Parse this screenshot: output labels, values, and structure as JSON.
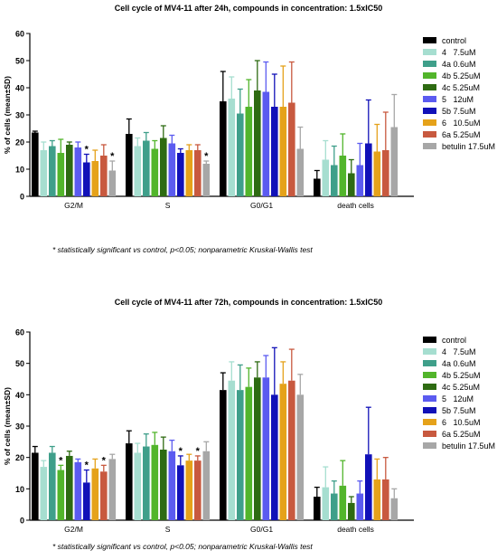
{
  "chart_data": [
    {
      "type": "bar",
      "title": "Cell cycle of  MV4-11 after 24h, compounds in concentration: 1.5xIC50",
      "ylabel": "% of cells (mean±SD)",
      "xlabel": "",
      "ylim": [
        0,
        60
      ],
      "yticks": [
        0,
        10,
        20,
        30,
        40,
        50,
        60
      ],
      "categories": [
        "G2/M",
        "S",
        "G0/G1",
        "death cells"
      ],
      "legend_position": "right",
      "series": [
        {
          "name": "control",
          "color": "#000000",
          "values": [
            23.5,
            23,
            35,
            6.5
          ],
          "errors": [
            0.5,
            5.5,
            11,
            3
          ],
          "significant": [
            false,
            false,
            false,
            false
          ]
        },
        {
          "name": "4   7.5uM",
          "color": "#a6ded0",
          "values": [
            17,
            18.5,
            36,
            13.5
          ],
          "errors": [
            3,
            3,
            8,
            7
          ],
          "significant": [
            false,
            false,
            false,
            false
          ]
        },
        {
          "name": "4a 0.6uM",
          "color": "#3f9f8a",
          "values": [
            18.5,
            20.5,
            30.5,
            11.5
          ],
          "errors": [
            2,
            3,
            9,
            7
          ],
          "significant": [
            false,
            false,
            false,
            false
          ]
        },
        {
          "name": "4b 5.25uM",
          "color": "#52b52b",
          "values": [
            16,
            17.5,
            33,
            15
          ],
          "errors": [
            5,
            3,
            10,
            8
          ],
          "significant": [
            false,
            false,
            false,
            false
          ]
        },
        {
          "name": "4c 5.25uM",
          "color": "#2e6b12",
          "values": [
            19,
            21.5,
            39,
            8.5
          ],
          "errors": [
            1,
            4.5,
            11,
            5
          ],
          "significant": [
            false,
            false,
            false,
            false
          ]
        },
        {
          "name": "5   12uM",
          "color": "#5b5bf0",
          "values": [
            18,
            19.5,
            38.5,
            11.5
          ],
          "errors": [
            2,
            3,
            11,
            8
          ],
          "significant": [
            false,
            false,
            false,
            false
          ]
        },
        {
          "name": "5b 7.5uM",
          "color": "#1111b8",
          "values": [
            12.5,
            16,
            33,
            19.5
          ],
          "errors": [
            3,
            1.5,
            12,
            16
          ],
          "significant": [
            true,
            false,
            false,
            false
          ]
        },
        {
          "name": "6   10.5uM",
          "color": "#e5a21a",
          "values": [
            13,
            17,
            33,
            16.5
          ],
          "errors": [
            4,
            2,
            15,
            10
          ],
          "significant": [
            false,
            false,
            false,
            false
          ]
        },
        {
          "name": "6a 5.25uM",
          "color": "#c8593f",
          "values": [
            15,
            17,
            34.5,
            17
          ],
          "errors": [
            4,
            2,
            15,
            14
          ],
          "significant": [
            false,
            false,
            false,
            false
          ]
        },
        {
          "name": "betulin 17.5uM",
          "color": "#a7a7a7",
          "values": [
            9.5,
            12,
            17.5,
            25.5
          ],
          "errors": [
            3.5,
            1,
            8,
            12
          ],
          "significant": [
            true,
            true,
            false,
            false
          ]
        }
      ],
      "footnote": "* statistically significant vs control, p<0.05; nonparametric Kruskal-Wallis test"
    },
    {
      "type": "bar",
      "title": "Cell cycle of MV4-11 after 72h, compounds in concentration: 1.5xIC50",
      "ylabel": "% of cells (mean±SD)",
      "xlabel": "",
      "ylim": [
        0,
        60
      ],
      "yticks": [
        0,
        10,
        20,
        30,
        40,
        50,
        60
      ],
      "categories": [
        "G2/M",
        "S",
        "G0/G1",
        "death cells"
      ],
      "legend_position": "right",
      "series": [
        {
          "name": "control",
          "color": "#000000",
          "values": [
            21.5,
            24.5,
            41.5,
            7.5
          ],
          "errors": [
            2,
            4,
            5.5,
            3
          ],
          "significant": [
            false,
            false,
            false,
            false
          ]
        },
        {
          "name": "4   7.5uM",
          "color": "#a6ded0",
          "values": [
            17,
            21.5,
            44.5,
            10.5
          ],
          "errors": [
            2,
            3,
            6,
            6.5
          ],
          "significant": [
            false,
            false,
            false,
            false
          ]
        },
        {
          "name": "4a 0.6uM",
          "color": "#3f9f8a",
          "values": [
            21.5,
            23.5,
            41.5,
            8.5
          ],
          "errors": [
            2,
            4,
            8,
            4
          ],
          "significant": [
            false,
            false,
            false,
            false
          ]
        },
        {
          "name": "4b 5.25uM",
          "color": "#52b52b",
          "values": [
            16,
            24,
            42.5,
            11
          ],
          "errors": [
            1.5,
            4,
            6,
            8
          ],
          "significant": [
            true,
            false,
            false,
            false
          ]
        },
        {
          "name": "4c 5.25uM",
          "color": "#2e6b12",
          "values": [
            20.5,
            22.5,
            45.5,
            5.5
          ],
          "errors": [
            1.5,
            4,
            5,
            2
          ],
          "significant": [
            false,
            false,
            false,
            false
          ]
        },
        {
          "name": "5   12uM",
          "color": "#5b5bf0",
          "values": [
            18.5,
            22,
            45.5,
            8.5
          ],
          "errors": [
            1,
            3.5,
            7,
            4
          ],
          "significant": [
            false,
            false,
            false,
            false
          ]
        },
        {
          "name": "5b 7.5uM",
          "color": "#1111b8",
          "values": [
            12,
            17.5,
            40,
            21
          ],
          "errors": [
            4,
            3,
            15,
            15
          ],
          "significant": [
            true,
            true,
            false,
            false
          ]
        },
        {
          "name": "6   10.5uM",
          "color": "#e5a21a",
          "values": [
            16.5,
            19,
            43.5,
            13
          ],
          "errors": [
            3,
            2,
            7,
            6.5
          ],
          "significant": [
            false,
            false,
            false,
            false
          ]
        },
        {
          "name": "6a 5.25uM",
          "color": "#c8593f",
          "values": [
            15.5,
            19,
            44.5,
            13
          ],
          "errors": [
            2,
            1.5,
            10,
            7
          ],
          "significant": [
            true,
            true,
            false,
            false
          ]
        },
        {
          "name": "betulin 17.5uM",
          "color": "#a7a7a7",
          "values": [
            19.5,
            22,
            40,
            7
          ],
          "errors": [
            1.5,
            3,
            6.5,
            3
          ],
          "significant": [
            false,
            false,
            false,
            false
          ]
        }
      ],
      "footnote": "* statistically significant vs control, p<0.05; nonparametric Kruskal-Wallis test"
    }
  ]
}
